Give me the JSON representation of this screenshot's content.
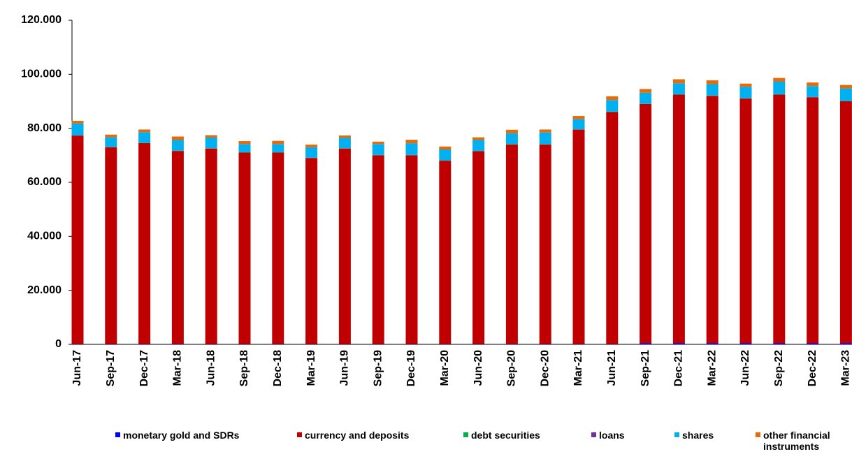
{
  "chart_data": {
    "type": "stacked_bar",
    "categories": [
      "Jun-17",
      "Sep-17",
      "Dec-17",
      "Mar-18",
      "Jun-18",
      "Sep-18",
      "Dec-18",
      "Mar-19",
      "Jun-19",
      "Sep-19",
      "Dec-19",
      "Mar-20",
      "Jun-20",
      "Sep-20",
      "Dec-20",
      "Mar-21",
      "Jun-21",
      "Sep-21",
      "Dec-21",
      "Mar-22",
      "Jun-22",
      "Sep-22",
      "Dec-22",
      "Mar-23"
    ],
    "series": [
      {
        "name": "monetary gold and SDRs",
        "color": "#0000ff",
        "values": [
          100,
          100,
          100,
          100,
          100,
          100,
          100,
          100,
          100,
          100,
          100,
          100,
          100,
          100,
          100,
          100,
          100,
          400,
          400,
          400,
          400,
          400,
          400,
          400
        ]
      },
      {
        "name": "currency and deposits",
        "color": "#c00000",
        "values": [
          77200,
          72900,
          74400,
          71500,
          72400,
          70900,
          70900,
          68900,
          72400,
          69900,
          69900,
          67900,
          71400,
          73900,
          73900,
          79400,
          85900,
          88600,
          92100,
          91600,
          90600,
          92100,
          91100,
          89600
        ]
      },
      {
        "name": "debt securities",
        "color": "#00b050",
        "values": [
          100,
          100,
          100,
          100,
          100,
          100,
          100,
          100,
          100,
          100,
          100,
          100,
          100,
          100,
          100,
          100,
          100,
          100,
          100,
          100,
          100,
          100,
          100,
          100
        ]
      },
      {
        "name": "loans",
        "color": "#7030a0",
        "values": [
          50,
          50,
          50,
          50,
          50,
          50,
          50,
          50,
          50,
          50,
          50,
          50,
          50,
          50,
          50,
          50,
          50,
          50,
          50,
          50,
          50,
          50,
          50,
          50
        ]
      },
      {
        "name": "shares",
        "color": "#00b0f0",
        "values": [
          4300,
          3500,
          3900,
          3900,
          3900,
          3000,
          3000,
          3800,
          3800,
          4000,
          4300,
          4000,
          4000,
          4000,
          4300,
          3700,
          4300,
          4000,
          4000,
          4200,
          4200,
          4600,
          4000,
          4600
        ]
      },
      {
        "name": "other financial instruments",
        "color": "#e46c0a",
        "values": [
          1000,
          1000,
          1000,
          1300,
          900,
          1100,
          1200,
          1000,
          900,
          900,
          1300,
          1100,
          1000,
          1300,
          1100,
          1200,
          1400,
          1400,
          1500,
          1400,
          1200,
          1400,
          1300,
          1300
        ]
      }
    ],
    "ylim": [
      0,
      120000
    ],
    "yticks": [
      0,
      {
        "value": 20000,
        "label": "20.000"
      },
      {
        "value": 40000,
        "label": "40.000"
      },
      {
        "value": 60000,
        "label": "60.000"
      },
      {
        "value": 80000,
        "label": "80.000"
      },
      {
        "value": 100000,
        "label": "100.000"
      },
      {
        "value": 120000,
        "label": "120.000"
      }
    ],
    "grid": false,
    "legend": "bottom"
  }
}
